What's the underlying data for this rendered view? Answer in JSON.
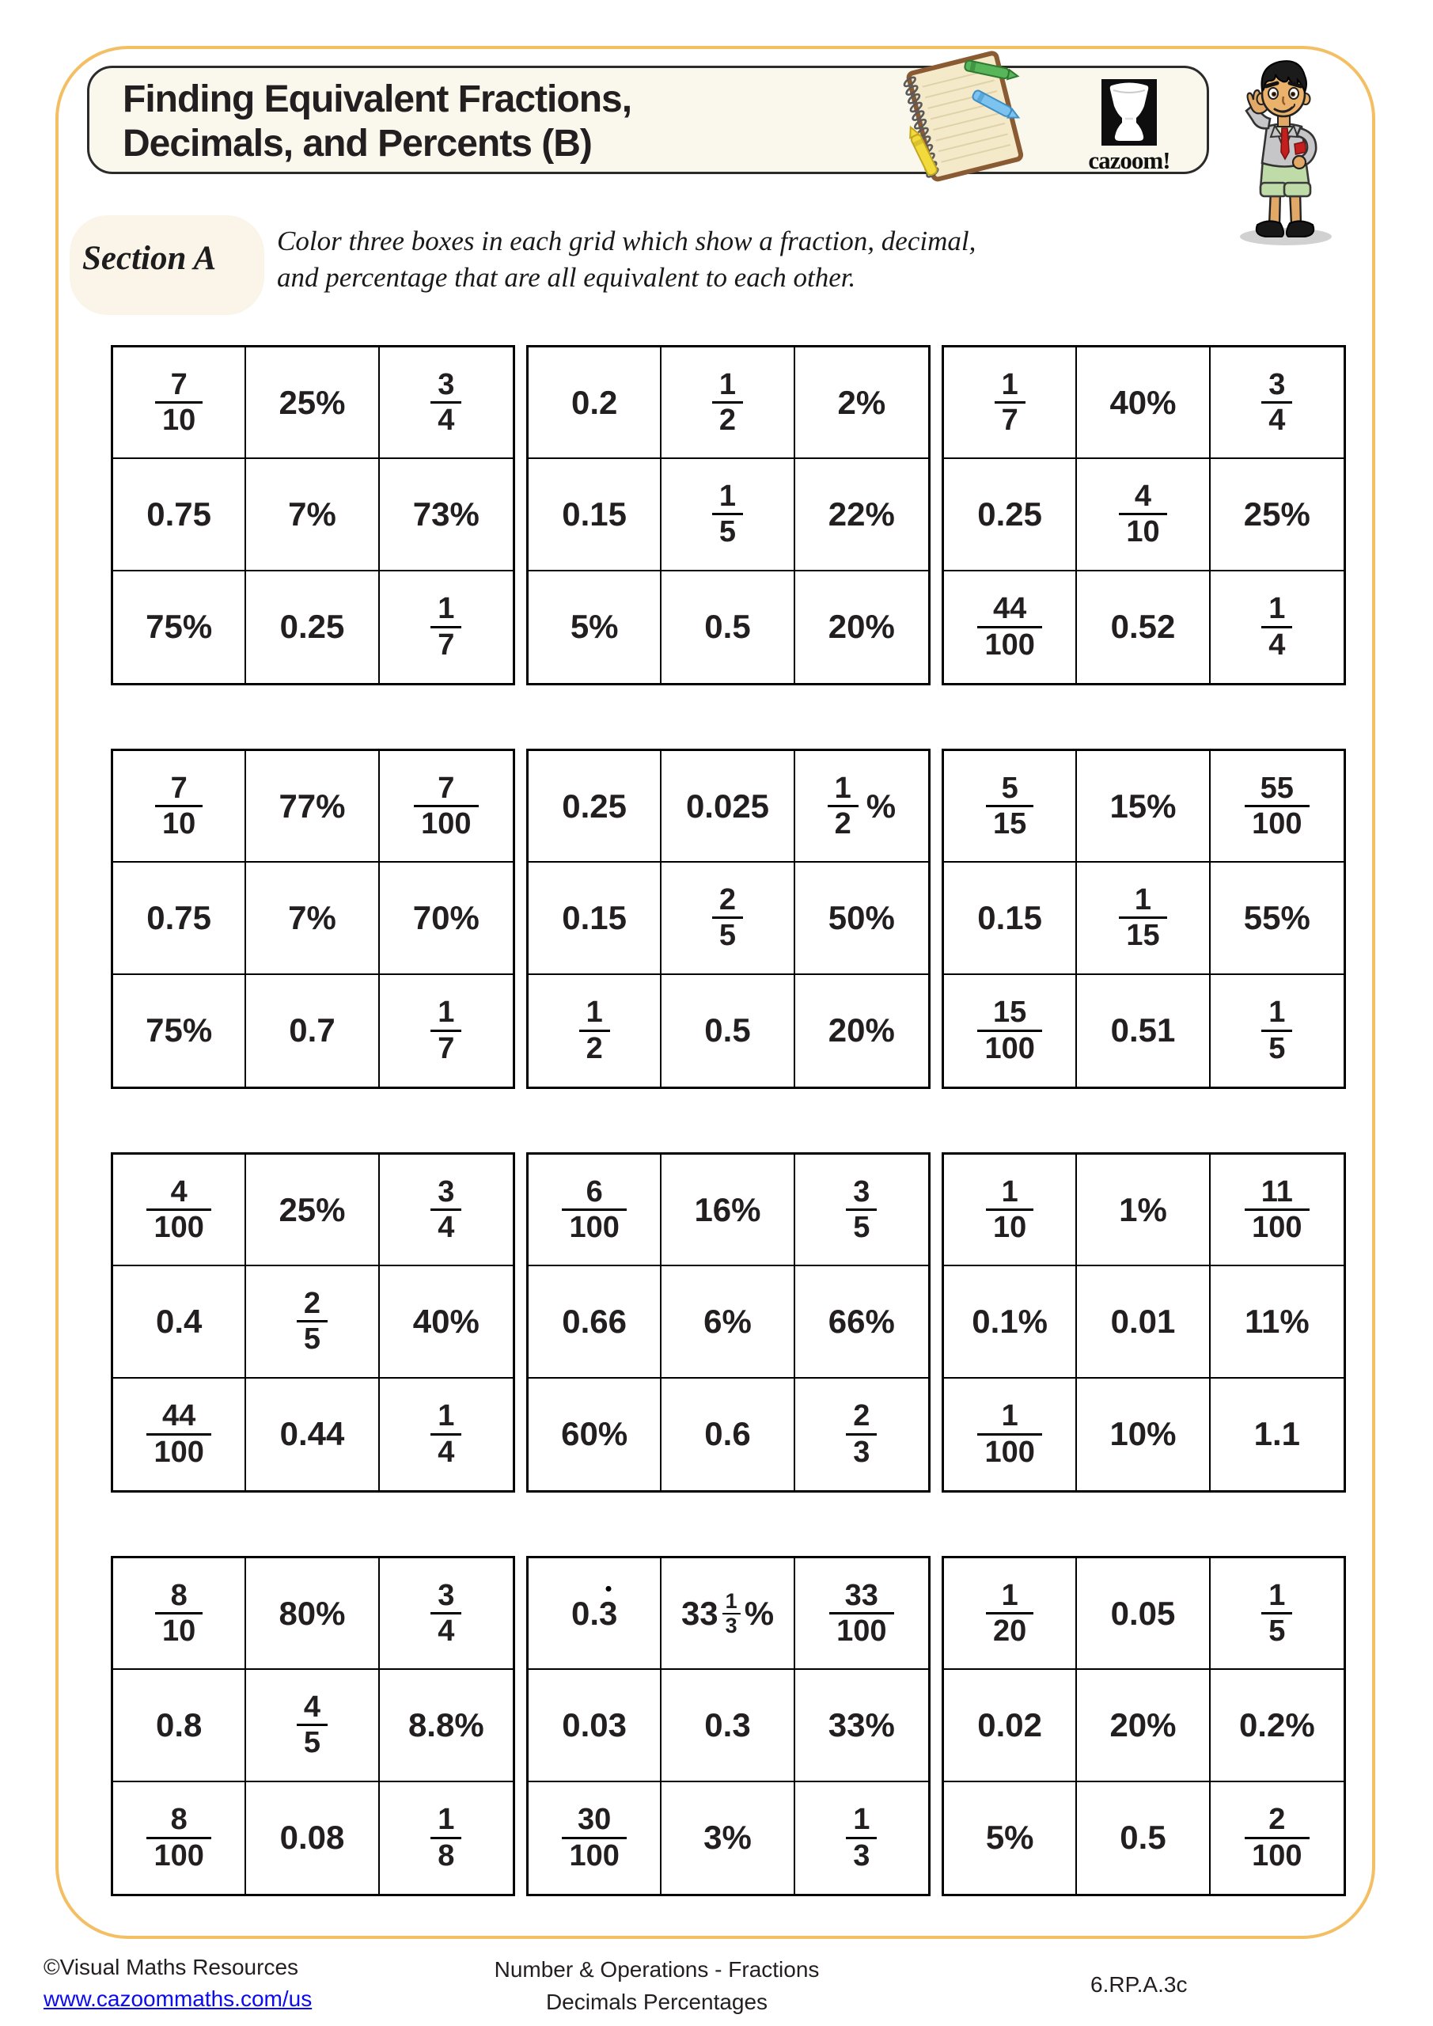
{
  "header": {
    "title_line1": "Finding Equivalent Fractions,",
    "title_line2": "Decimals, and Percents (B)",
    "logo_text": "cazoom!"
  },
  "section_a": {
    "label": "Section A",
    "instructions_line1": "Color three boxes in each grid which show a fraction, decimal,",
    "instructions_line2": "and percentage that are all equivalent to each other."
  },
  "grids": [
    {
      "cells": [
        {
          "t": "frac",
          "n": "7",
          "d": "10"
        },
        {
          "t": "text",
          "v": "25%"
        },
        {
          "t": "frac",
          "n": "3",
          "d": "4"
        },
        {
          "t": "text",
          "v": "0.75"
        },
        {
          "t": "text",
          "v": "7%"
        },
        {
          "t": "text",
          "v": "73%"
        },
        {
          "t": "text",
          "v": "75%"
        },
        {
          "t": "text",
          "v": "0.25"
        },
        {
          "t": "frac",
          "n": "1",
          "d": "7"
        }
      ]
    },
    {
      "cells": [
        {
          "t": "text",
          "v": "0.2"
        },
        {
          "t": "frac",
          "n": "1",
          "d": "2"
        },
        {
          "t": "text",
          "v": "2%"
        },
        {
          "t": "text",
          "v": "0.15"
        },
        {
          "t": "frac",
          "n": "1",
          "d": "5"
        },
        {
          "t": "text",
          "v": "22%"
        },
        {
          "t": "text",
          "v": "5%"
        },
        {
          "t": "text",
          "v": "0.5"
        },
        {
          "t": "text",
          "v": "20%"
        }
      ]
    },
    {
      "cells": [
        {
          "t": "frac",
          "n": "1",
          "d": "7"
        },
        {
          "t": "text",
          "v": "40%"
        },
        {
          "t": "frac",
          "n": "3",
          "d": "4"
        },
        {
          "t": "text",
          "v": "0.25"
        },
        {
          "t": "frac",
          "n": "4",
          "d": "10"
        },
        {
          "t": "text",
          "v": "25%"
        },
        {
          "t": "frac",
          "n": "44",
          "d": "100"
        },
        {
          "t": "text",
          "v": "0.52"
        },
        {
          "t": "frac",
          "n": "1",
          "d": "4"
        }
      ]
    },
    {
      "cells": [
        {
          "t": "frac",
          "n": "7",
          "d": "10"
        },
        {
          "t": "text",
          "v": "77%"
        },
        {
          "t": "frac",
          "n": "7",
          "d": "100"
        },
        {
          "t": "text",
          "v": "0.75"
        },
        {
          "t": "text",
          "v": "7%"
        },
        {
          "t": "text",
          "v": "70%"
        },
        {
          "t": "text",
          "v": "75%"
        },
        {
          "t": "text",
          "v": "0.7"
        },
        {
          "t": "frac",
          "n": "1",
          "d": "7"
        }
      ]
    },
    {
      "cells": [
        {
          "t": "text",
          "v": "0.25"
        },
        {
          "t": "text",
          "v": "0.025"
        },
        {
          "t": "fracpct",
          "n": "1",
          "d": "2"
        },
        {
          "t": "text",
          "v": "0.15"
        },
        {
          "t": "frac",
          "n": "2",
          "d": "5"
        },
        {
          "t": "text",
          "v": "50%"
        },
        {
          "t": "frac",
          "n": "1",
          "d": "2"
        },
        {
          "t": "text",
          "v": "0.5"
        },
        {
          "t": "text",
          "v": "20%"
        }
      ]
    },
    {
      "cells": [
        {
          "t": "frac",
          "n": "5",
          "d": "15"
        },
        {
          "t": "text",
          "v": "15%"
        },
        {
          "t": "frac",
          "n": "55",
          "d": "100"
        },
        {
          "t": "text",
          "v": "0.15"
        },
        {
          "t": "frac",
          "n": "1",
          "d": "15"
        },
        {
          "t": "text",
          "v": "55%"
        },
        {
          "t": "frac",
          "n": "15",
          "d": "100"
        },
        {
          "t": "text",
          "v": "0.51"
        },
        {
          "t": "frac",
          "n": "1",
          "d": "5"
        }
      ]
    },
    {
      "cells": [
        {
          "t": "frac",
          "n": "4",
          "d": "100"
        },
        {
          "t": "text",
          "v": "25%"
        },
        {
          "t": "frac",
          "n": "3",
          "d": "4"
        },
        {
          "t": "text",
          "v": "0.4"
        },
        {
          "t": "frac",
          "n": "2",
          "d": "5"
        },
        {
          "t": "text",
          "v": "40%"
        },
        {
          "t": "frac",
          "n": "44",
          "d": "100"
        },
        {
          "t": "text",
          "v": "0.44"
        },
        {
          "t": "frac",
          "n": "1",
          "d": "4"
        }
      ]
    },
    {
      "cells": [
        {
          "t": "frac",
          "n": "6",
          "d": "100"
        },
        {
          "t": "text",
          "v": "16%"
        },
        {
          "t": "frac",
          "n": "3",
          "d": "5"
        },
        {
          "t": "text",
          "v": "0.66"
        },
        {
          "t": "text",
          "v": "6%"
        },
        {
          "t": "text",
          "v": "66%"
        },
        {
          "t": "text",
          "v": "60%"
        },
        {
          "t": "text",
          "v": "0.6"
        },
        {
          "t": "frac",
          "n": "2",
          "d": "3"
        }
      ]
    },
    {
      "cells": [
        {
          "t": "frac",
          "n": "1",
          "d": "10"
        },
        {
          "t": "text",
          "v": "1%"
        },
        {
          "t": "frac",
          "n": "11",
          "d": "100"
        },
        {
          "t": "text",
          "v": "0.1%"
        },
        {
          "t": "text",
          "v": "0.01"
        },
        {
          "t": "text",
          "v": "11%"
        },
        {
          "t": "frac",
          "n": "1",
          "d": "100"
        },
        {
          "t": "text",
          "v": "10%"
        },
        {
          "t": "text",
          "v": "1.1"
        }
      ]
    },
    {
      "cells": [
        {
          "t": "frac",
          "n": "8",
          "d": "10"
        },
        {
          "t": "text",
          "v": "80%"
        },
        {
          "t": "frac",
          "n": "3",
          "d": "4"
        },
        {
          "t": "text",
          "v": "0.8"
        },
        {
          "t": "frac",
          "n": "4",
          "d": "5"
        },
        {
          "t": "text",
          "v": "8.8%"
        },
        {
          "t": "frac",
          "n": "8",
          "d": "100"
        },
        {
          "t": "text",
          "v": "0.08"
        },
        {
          "t": "frac",
          "n": "1",
          "d": "8"
        }
      ]
    },
    {
      "cells": [
        {
          "t": "recur",
          "pre": "0.",
          "digit": "3"
        },
        {
          "t": "mixedpct",
          "w": "33",
          "n": "1",
          "d": "3"
        },
        {
          "t": "frac",
          "n": "33",
          "d": "100"
        },
        {
          "t": "text",
          "v": "0.03"
        },
        {
          "t": "text",
          "v": "0.3"
        },
        {
          "t": "text",
          "v": "33%"
        },
        {
          "t": "frac",
          "n": "30",
          "d": "100"
        },
        {
          "t": "text",
          "v": "3%"
        },
        {
          "t": "frac",
          "n": "1",
          "d": "3"
        }
      ]
    },
    {
      "cells": [
        {
          "t": "frac",
          "n": "1",
          "d": "20"
        },
        {
          "t": "text",
          "v": "0.05"
        },
        {
          "t": "frac",
          "n": "1",
          "d": "5"
        },
        {
          "t": "text",
          "v": "0.02"
        },
        {
          "t": "text",
          "v": "20%"
        },
        {
          "t": "text",
          "v": "0.2%"
        },
        {
          "t": "text",
          "v": "5%"
        },
        {
          "t": "text",
          "v": "0.5"
        },
        {
          "t": "frac",
          "n": "2",
          "d": "100"
        }
      ]
    }
  ],
  "footer": {
    "copyright": "©Visual Maths Resources",
    "url": "www.cazoommaths.com/us",
    "topic_line1": "Number & Operations - Fractions",
    "topic_line2": "Decimals Percentages",
    "standard_code": "6.RP.A.3c"
  },
  "colors": {
    "frame_border": "#F4BE62",
    "title_background": "#FAF7EC",
    "section_background": "#FBF4E8",
    "link_blue": "#0B0BEF",
    "text": "#231F20"
  }
}
